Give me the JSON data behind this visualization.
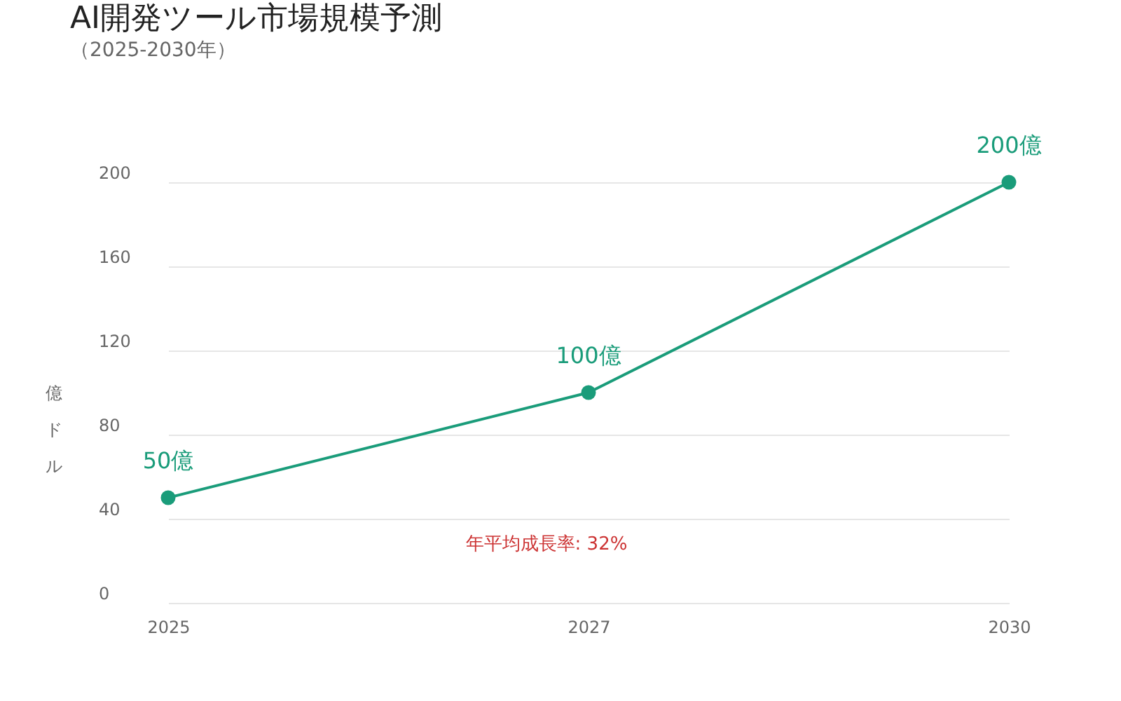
{
  "chart_data": {
    "type": "line",
    "title": "AI開発ツール市場規模予測",
    "subtitle": "（2025-2030年）",
    "ylabel": "億ドル",
    "categories": [
      "2025",
      "2027",
      "2030"
    ],
    "series": [
      {
        "color": "#1a9c7a",
        "values": [
          50,
          100,
          200
        ],
        "value_labels": [
          "50億",
          "100億",
          "200億"
        ]
      }
    ],
    "ylim": [
      0,
      200
    ],
    "yticks": [
      0,
      40,
      80,
      120,
      160,
      200
    ],
    "grid": "y",
    "marker": "circle",
    "line_style": "solid",
    "annotations": [
      "年平均成長率: 32%"
    ]
  }
}
